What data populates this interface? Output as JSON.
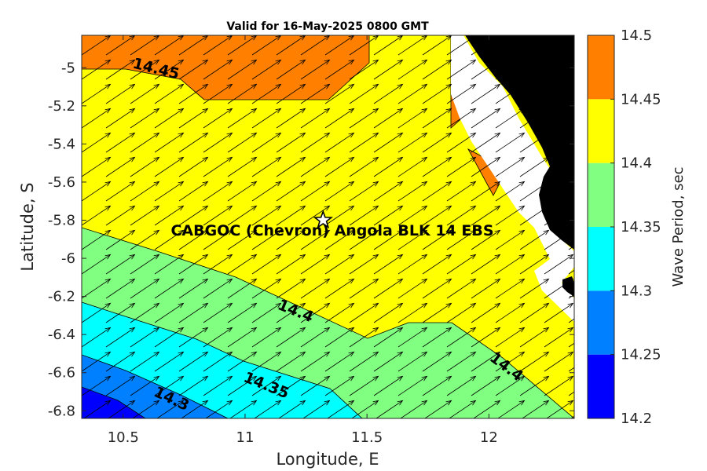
{
  "chart_data": {
    "type": "heatmap",
    "title": "Valid for 16-May-2025 0800 GMT",
    "xlabel": "Longitude, E",
    "ylabel": "Latitude, S",
    "xlim": [
      10.33,
      12.35
    ],
    "ylim": [
      -6.84,
      -4.83
    ],
    "x_ticks": [
      10.5,
      11,
      11.5,
      12
    ],
    "x_tick_labels": [
      "10.5",
      "11",
      "11.5",
      "12"
    ],
    "y_ticks": [
      -5,
      -5.2,
      -5.4,
      -5.6,
      -5.8,
      -6,
      -6.2,
      -6.4,
      -6.6,
      -6.8
    ],
    "y_tick_labels": [
      "-5",
      "-5.2",
      "-5.4",
      "-5.6",
      "-5.8",
      "-6",
      "-6.2",
      "-6.4",
      "-6.6",
      "-6.8"
    ],
    "colorbar": {
      "label": "Wave Period, sec",
      "levels": [
        14.2,
        14.25,
        14.3,
        14.35,
        14.4,
        14.45,
        14.5
      ],
      "tick_labels": [
        "14.2",
        "14.25",
        "14.3",
        "14.35",
        "14.4",
        "14.45",
        "14.5"
      ],
      "colors": [
        "#0000ff",
        "#0080ff",
        "#00ffff",
        "#80ff80",
        "#ffff00",
        "#ff8000"
      ]
    },
    "contour_labels": [
      {
        "text": "14.45",
        "lon": 10.63,
        "lat": -5.03,
        "angle": 14
      },
      {
        "text": "14.4",
        "lon": 11.2,
        "lat": -6.3,
        "angle": 22
      },
      {
        "text": "14.35",
        "lon": 11.08,
        "lat": -6.69,
        "angle": 22
      },
      {
        "text": "14.3",
        "lon": 10.69,
        "lat": -6.76,
        "angle": 25
      },
      {
        "text": "14.4",
        "lon": 12.06,
        "lat": -6.59,
        "angle": 37
      }
    ],
    "station": {
      "name": "CABGOC (Chevron)  Angola BLK 14  EBS",
      "lon": 11.32,
      "lat": -5.8
    },
    "vectors": "wave direction arrows pointing toward the north-east on a regular grid",
    "land_color": "#000000"
  }
}
